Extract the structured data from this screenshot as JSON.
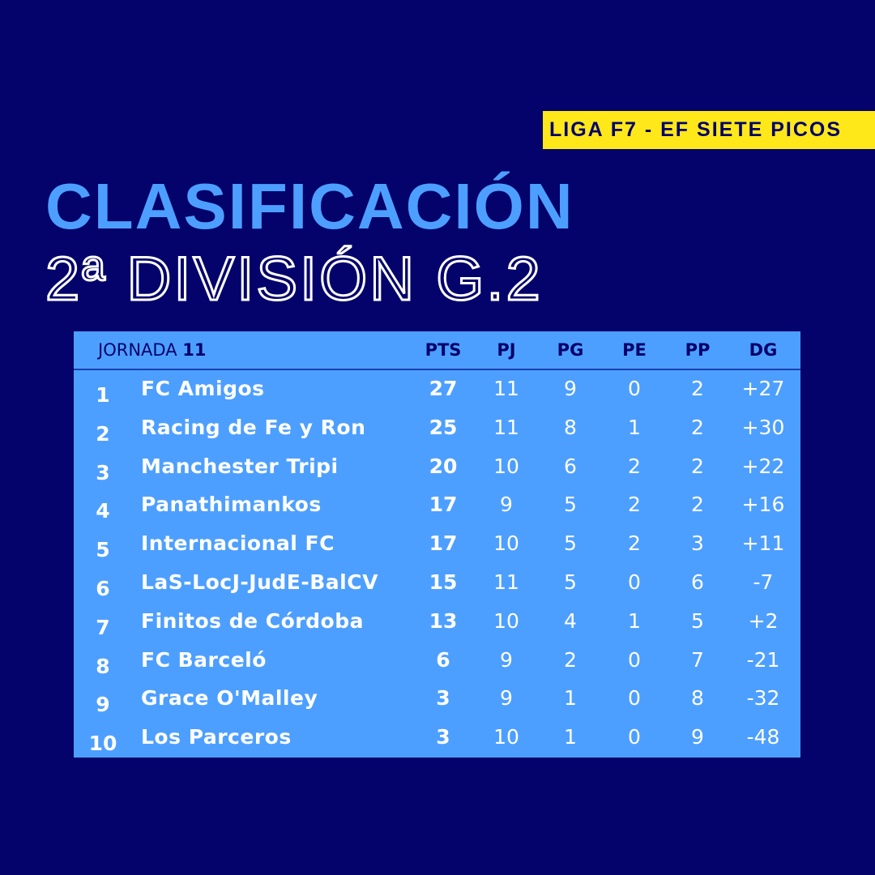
{
  "badge": "LIGA F7 - EF SIETE PICOS",
  "title": "CLASIFICACIÓN",
  "subtitle": "2ª DIVISIÓN G.2",
  "colors": {
    "background": "#03036b",
    "accent": "#4d9fff",
    "badge": "#ffe81a"
  },
  "table": {
    "jornada_label": "JORNADA",
    "jornada_number": "11",
    "columns": [
      "PTS",
      "PJ",
      "PG",
      "PE",
      "PP",
      "DG"
    ],
    "rows": [
      {
        "pos": "1",
        "team": "FC Amigos",
        "pts": "27",
        "pj": "11",
        "pg": "9",
        "pe": "0",
        "pp": "2",
        "dg": "+27"
      },
      {
        "pos": "2",
        "team": "Racing de Fe y Ron",
        "pts": "25",
        "pj": "11",
        "pg": "8",
        "pe": "1",
        "pp": "2",
        "dg": "+30"
      },
      {
        "pos": "3",
        "team": "Manchester Tripi",
        "pts": "20",
        "pj": "10",
        "pg": "6",
        "pe": "2",
        "pp": "2",
        "dg": "+22"
      },
      {
        "pos": "4",
        "team": "Panathimankos",
        "pts": "17",
        "pj": "9",
        "pg": "5",
        "pe": "2",
        "pp": "2",
        "dg": "+16"
      },
      {
        "pos": "5",
        "team": "Internacional FC",
        "pts": "17",
        "pj": "10",
        "pg": "5",
        "pe": "2",
        "pp": "3",
        "dg": "+11"
      },
      {
        "pos": "6",
        "team": "LaS-LocJ-JudE-BalCV",
        "pts": "15",
        "pj": "11",
        "pg": "5",
        "pe": "0",
        "pp": "6",
        "dg": "-7"
      },
      {
        "pos": "7",
        "team": "Finitos de Córdoba",
        "pts": "13",
        "pj": "10",
        "pg": "4",
        "pe": "1",
        "pp": "5",
        "dg": "+2"
      },
      {
        "pos": "8",
        "team": "FC Barceló",
        "pts": "6",
        "pj": "9",
        "pg": "2",
        "pe": "0",
        "pp": "7",
        "dg": "-21"
      },
      {
        "pos": "9",
        "team": "Grace O'Malley",
        "pts": "3",
        "pj": "9",
        "pg": "1",
        "pe": "0",
        "pp": "8",
        "dg": "-32"
      },
      {
        "pos": "10",
        "team": "Los Parceros",
        "pts": "3",
        "pj": "10",
        "pg": "1",
        "pe": "0",
        "pp": "9",
        "dg": "-48"
      }
    ]
  }
}
